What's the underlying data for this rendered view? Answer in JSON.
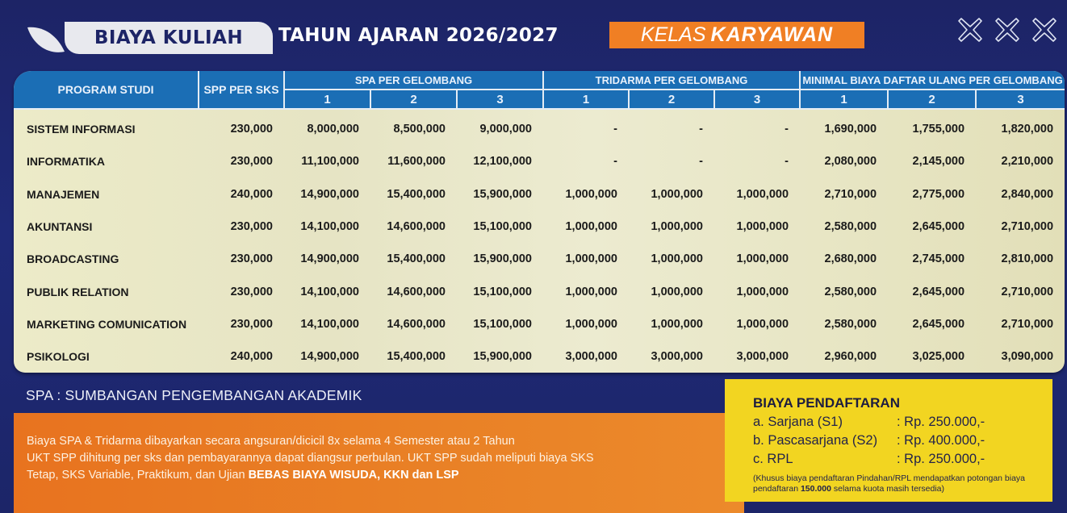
{
  "header": {
    "title_main": "BIAYA KULIAH",
    "title_year": "TAHUN AJARAN 2026/2027",
    "kelas_prefix": "KELAS",
    "kelas_name": "KARYAWAN",
    "decor_icons": [
      "x-outline-icon",
      "x-outline-icon",
      "x-outline-icon"
    ],
    "colors": {
      "background": "#1d2466",
      "badge": "#f07f24",
      "table_header": "#1b6eb5"
    }
  },
  "table": {
    "headers": {
      "program": "PROGRAM STUDI",
      "spp": "SPP PER SKS",
      "spa_group": "SPA PER GELOMBANG",
      "tridarma_group": "TRIDARMA PER GELOMBANG",
      "daftar_ulang_group": "MINIMAL BIAYA DAFTAR ULANG PER GELOMBANG",
      "waves": [
        "1",
        "2",
        "3"
      ]
    },
    "rows": [
      {
        "program": "SISTEM INFORMASI",
        "spp": "230,000",
        "spa": [
          "8,000,000",
          "8,500,000",
          "9,000,000"
        ],
        "tridarma": [
          "-",
          "-",
          "-"
        ],
        "daftar_ulang": [
          "1,690,000",
          "1,755,000",
          "1,820,000"
        ]
      },
      {
        "program": "INFORMATIKA",
        "spp": "230,000",
        "spa": [
          "11,100,000",
          "11,600,000",
          "12,100,000"
        ],
        "tridarma": [
          "-",
          "-",
          "-"
        ],
        "daftar_ulang": [
          "2,080,000",
          "2,145,000",
          "2,210,000"
        ]
      },
      {
        "program": "MANAJEMEN",
        "spp": "240,000",
        "spa": [
          "14,900,000",
          "15,400,000",
          "15,900,000"
        ],
        "tridarma": [
          "1,000,000",
          "1,000,000",
          "1,000,000"
        ],
        "daftar_ulang": [
          "2,710,000",
          "2,775,000",
          "2,840,000"
        ]
      },
      {
        "program": "AKUNTANSI",
        "spp": "230,000",
        "spa": [
          "14,100,000",
          "14,600,000",
          "15,100,000"
        ],
        "tridarma": [
          "1,000,000",
          "1,000,000",
          "1,000,000"
        ],
        "daftar_ulang": [
          "2,580,000",
          "2,645,000",
          "2,710,000"
        ]
      },
      {
        "program": "BROADCASTING",
        "spp": "230,000",
        "spa": [
          "14,900,000",
          "15,400,000",
          "15,900,000"
        ],
        "tridarma": [
          "1,000,000",
          "1,000,000",
          "1,000,000"
        ],
        "daftar_ulang": [
          "2,680,000",
          "2,745,000",
          "2,810,000"
        ]
      },
      {
        "program": "PUBLIK RELATION",
        "spp": "230,000",
        "spa": [
          "14,100,000",
          "14,600,000",
          "15,100,000"
        ],
        "tridarma": [
          "1,000,000",
          "1,000,000",
          "1,000,000"
        ],
        "daftar_ulang": [
          "2,580,000",
          "2,645,000",
          "2,710,000"
        ]
      },
      {
        "program": "MARKETING COMUNICATION",
        "spp": "230,000",
        "spa": [
          "14,100,000",
          "14,600,000",
          "15,100,000"
        ],
        "tridarma": [
          "1,000,000",
          "1,000,000",
          "1,000,000"
        ],
        "daftar_ulang": [
          "2,580,000",
          "2,645,000",
          "2,710,000"
        ]
      },
      {
        "program": "PSIKOLOGI",
        "spp": "240,000",
        "spa": [
          "14,900,000",
          "15,400,000",
          "15,900,000"
        ],
        "tridarma": [
          "3,000,000",
          "3,000,000",
          "3,000,000"
        ],
        "daftar_ulang": [
          "2,960,000",
          "3,025,000",
          "3,090,000"
        ]
      }
    ]
  },
  "footnote": {
    "spa_definition": "SPA : SUMBANGAN PENGEMBANGAN AKADEMIK",
    "info_line1": "Biaya SPA & Tridarma dibayarkan secara angsuran/dicicil 8x selama 4 Semester atau 2 Tahun",
    "info_line2": "UKT SPP dihitung per sks dan pembayarannya dapat diangsur perbulan. UKT SPP sudah meliputi biaya SKS",
    "info_line3_plain": "Tetap, SKS Variable, Praktikum, dan Ujian ",
    "info_line3_bold": "BEBAS BIAYA WISUDA, KKN dan LSP"
  },
  "registration": {
    "title": "BIAYA PENDAFTARAN",
    "items": [
      {
        "label": "a.  Sarjana (S1)",
        "value": ": Rp. 250.000,-"
      },
      {
        "label": "b.  Pascasarjana (S2)",
        "value": ": Rp. 400.000,-"
      },
      {
        "label": "c.  RPL",
        "value": ": Rp. 250.000,-"
      }
    ],
    "note_before": "(Khusus biaya pendaftaran Pindahan/RPL mendapatkan potongan biaya pendaftaran ",
    "note_bold": "150.000",
    "note_after": " selama kuota masih tersedia)"
  }
}
